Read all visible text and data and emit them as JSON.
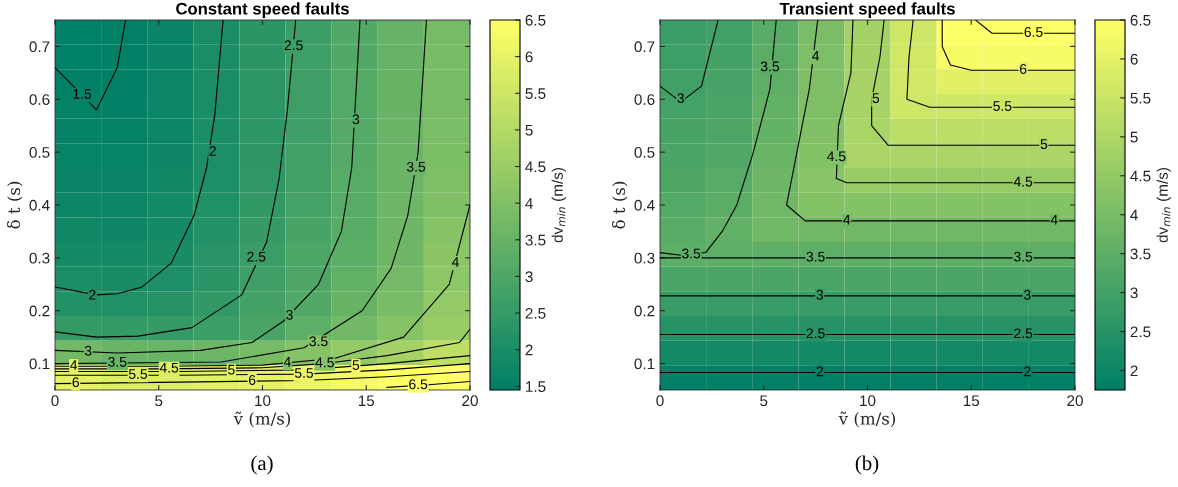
{
  "chart_data": [
    {
      "type": "heatmap",
      "title": "Constant speed faults",
      "xlabel": "ṽ (m/s)",
      "ylabel": "δ t (s)",
      "clabel": "dv$_{min}$ (m/s)",
      "annotations": [
        "(a)",
        {
          "text": "1.5",
          "x": 1.3,
          "y": 0.608
        },
        {
          "text": "2",
          "x": 7.6,
          "y": 0.5
        },
        {
          "text": "2",
          "x": 1.8,
          "y": 0.228
        },
        {
          "text": "2.5",
          "x": 11.5,
          "y": 0.7
        },
        {
          "text": "2.5",
          "x": 9.7,
          "y": 0.3
        },
        {
          "text": "3",
          "x": 14.5,
          "y": 0.56
        },
        {
          "text": "3",
          "x": 11.3,
          "y": 0.19
        },
        {
          "text": "3",
          "x": 1.6,
          "y": 0.122
        },
        {
          "text": "3.5",
          "x": 17.4,
          "y": 0.47
        },
        {
          "text": "3.5",
          "x": 12.7,
          "y": 0.14
        },
        {
          "text": "3.5",
          "x": 3,
          "y": 0.101
        },
        {
          "text": "4",
          "x": 19.3,
          "y": 0.29
        },
        {
          "text": "4",
          "x": 11.2,
          "y": 0.101
        },
        {
          "text": "4",
          "x": 0.9,
          "y": 0.095
        },
        {
          "text": "4.5",
          "x": 13,
          "y": 0.1
        },
        {
          "text": "4.5",
          "x": 5.5,
          "y": 0.09
        },
        {
          "text": "5",
          "x": 14.5,
          "y": 0.095
        },
        {
          "text": "5",
          "x": 8.5,
          "y": 0.0863
        },
        {
          "text": "5.5",
          "x": 12,
          "y": 0.08
        },
        {
          "text": "5.5",
          "x": 4,
          "y": 0.078
        },
        {
          "text": "6",
          "x": 1,
          "y": 0.0625
        },
        {
          "text": "6",
          "x": 9.5,
          "y": 0.0667
        },
        {
          "text": "6.5",
          "x": 17.5,
          "y": 0.0587
        }
      ],
      "series": [
        {
          "type": "line",
          "color": "#000000",
          "x": [
            0,
            1,
            2,
            3,
            3.4
          ],
          "values": [
            0.66,
            0.62,
            0.58,
            0.66,
            0.75
          ]
        },
        {
          "type": "line",
          "color": "#000000",
          "x": [
            0,
            2,
            3,
            4.2,
            5.6,
            6.7,
            7.3,
            7.7,
            8.1
          ],
          "values": [
            0.245,
            0.23,
            0.232,
            0.245,
            0.29,
            0.38,
            0.47,
            0.57,
            0.75
          ]
        },
        {
          "type": "line",
          "color": "#000000",
          "x": [
            0,
            2,
            4,
            6.6,
            9,
            10.2,
            10.8,
            11.2,
            11.6
          ],
          "values": [
            0.16,
            0.15,
            0.152,
            0.168,
            0.23,
            0.33,
            0.45,
            0.58,
            0.75
          ]
        },
        {
          "type": "line",
          "color": "#000000",
          "x": [
            0,
            3,
            7,
            9.5,
            11,
            12.7,
            13.8,
            14.3,
            14.7
          ],
          "values": [
            0.125,
            0.12,
            0.125,
            0.14,
            0.18,
            0.25,
            0.35,
            0.47,
            0.75
          ]
        },
        {
          "type": "line",
          "color": "#000000",
          "x": [
            0,
            3,
            8,
            12,
            14.8,
            16.2,
            17,
            17.5,
            17.9
          ],
          "values": [
            0.1,
            0.101,
            0.103,
            0.13,
            0.2,
            0.28,
            0.38,
            0.5,
            0.75
          ]
        },
        {
          "type": "line",
          "color": "#000000",
          "x": [
            0,
            5,
            10,
            13.5,
            16.8,
            19,
            20
          ],
          "values": [
            0.095,
            0.095,
            0.097,
            0.11,
            0.15,
            0.25,
            0.4
          ]
        },
        {
          "type": "line",
          "color": "#000000",
          "x": [
            0,
            5,
            10,
            13,
            16,
            19.5,
            20
          ],
          "values": [
            0.09,
            0.09,
            0.092,
            0.1,
            0.115,
            0.14,
            0.165
          ]
        },
        {
          "type": "line",
          "color": "#000000",
          "x": [
            0,
            6,
            12,
            16,
            20
          ],
          "values": [
            0.085,
            0.085,
            0.088,
            0.1,
            0.115
          ]
        },
        {
          "type": "line",
          "color": "#000000",
          "x": [
            0,
            6,
            12,
            16,
            20
          ],
          "values": [
            0.078,
            0.078,
            0.08,
            0.088,
            0.1
          ]
        },
        {
          "type": "line",
          "color": "#000000",
          "x": [
            0,
            6,
            12,
            16,
            20
          ],
          "values": [
            0.062,
            0.065,
            0.068,
            0.075,
            0.085
          ]
        },
        {
          "type": "line",
          "color": "#000000",
          "x": [
            16,
            18,
            20
          ],
          "values": [
            0.055,
            0.06,
            0.066
          ]
        }
      ],
      "xlim": [
        0,
        20
      ],
      "ylim": [
        0.05,
        0.75
      ],
      "xticks": [
        0,
        5,
        10,
        15,
        20
      ],
      "yticks": [
        0.1,
        0.2,
        0.3,
        0.4,
        0.5,
        0.6,
        0.7
      ],
      "clim": [
        1.45,
        6.5
      ],
      "cticks": [
        1.5,
        2,
        2.5,
        3,
        3.5,
        4,
        4.5,
        5,
        5.5,
        6,
        6.5
      ],
      "grid": false,
      "cells": [
        [
          1.45,
          1.47,
          1.65,
          1.97,
          2.3,
          2.65,
          3.07,
          3.47,
          3.8
        ],
        [
          1.46,
          1.48,
          1.66,
          1.98,
          2.31,
          2.67,
          3.08,
          3.48,
          3.82
        ],
        [
          1.5,
          1.5,
          1.67,
          1.99,
          2.32,
          2.68,
          3.09,
          3.5,
          3.84
        ],
        [
          1.54,
          1.52,
          1.69,
          2.0,
          2.33,
          2.69,
          3.1,
          3.51,
          3.86
        ],
        [
          1.57,
          1.55,
          1.72,
          2.01,
          2.34,
          2.7,
          3.11,
          3.53,
          3.88
        ],
        [
          1.6,
          1.6,
          1.75,
          2.03,
          2.36,
          2.72,
          3.12,
          3.55,
          3.9
        ],
        [
          1.65,
          1.65,
          1.78,
          2.06,
          2.4,
          2.76,
          3.15,
          3.57,
          3.95
        ],
        [
          1.7,
          1.7,
          1.83,
          2.1,
          2.45,
          2.82,
          3.18,
          3.6,
          4.0
        ],
        [
          1.78,
          1.76,
          1.88,
          2.15,
          2.52,
          2.88,
          3.22,
          3.6,
          4.1
        ],
        [
          1.87,
          1.84,
          1.95,
          2.22,
          2.6,
          2.95,
          3.28,
          3.65,
          4.2
        ],
        [
          1.98,
          1.95,
          2.05,
          2.3,
          2.68,
          3.0,
          3.38,
          3.75,
          4.25
        ],
        [
          2.15,
          2.1,
          2.2,
          2.42,
          2.78,
          3.08,
          3.5,
          3.87,
          4.35
        ],
        [
          2.48,
          2.48,
          2.5,
          2.65,
          2.9,
          3.3,
          3.7,
          4.1,
          4.5
        ],
        [
          3.7,
          3.55,
          3.55,
          3.6,
          3.8,
          4.1,
          4.35,
          4.7,
          5.2
        ],
        [
          6.0,
          5.8,
          5.8,
          5.9,
          6.0,
          6.1,
          6.3,
          6.5,
          6.5
        ]
      ]
    },
    {
      "type": "heatmap",
      "title": "Transient speed faults",
      "xlabel": "ṽ (m/s)",
      "ylabel": "δ t (s)",
      "clabel": "dv$_{min}$ (m/s)",
      "annotations": [
        "(b)",
        {
          "text": "3",
          "x": 1,
          "y": 0.6
        },
        {
          "text": "3.5",
          "x": 1.5,
          "y": 0.306
        },
        {
          "text": "3.5",
          "x": 5.3,
          "y": 0.66
        },
        {
          "text": "4",
          "x": 7.5,
          "y": 0.68
        },
        {
          "text": "4.5",
          "x": 8.5,
          "y": 0.49
        },
        {
          "text": "5",
          "x": 10.4,
          "y": 0.6
        },
        {
          "text": "3.5",
          "x": 7.5,
          "y": 0.3
        },
        {
          "text": "3.5",
          "x": 17.5,
          "y": 0.3
        },
        {
          "text": "4",
          "x": 9,
          "y": 0.37
        },
        {
          "text": "4",
          "x": 19,
          "y": 0.37
        },
        {
          "text": "4.5",
          "x": 17.5,
          "y": 0.442
        },
        {
          "text": "5",
          "x": 18.5,
          "y": 0.513
        },
        {
          "text": "5.5",
          "x": 16.5,
          "y": 0.585
        },
        {
          "text": "6",
          "x": 17.5,
          "y": 0.655
        },
        {
          "text": "6.5",
          "x": 18,
          "y": 0.725
        },
        {
          "text": "3",
          "x": 7.7,
          "y": 0.228
        },
        {
          "text": "3",
          "x": 17.7,
          "y": 0.228
        },
        {
          "text": "2.5",
          "x": 7.5,
          "y": 0.155
        },
        {
          "text": "2.5",
          "x": 17.5,
          "y": 0.155
        },
        {
          "text": "2",
          "x": 7.7,
          "y": 0.083
        },
        {
          "text": "2",
          "x": 17.7,
          "y": 0.083
        }
      ],
      "series": [
        {
          "type": "line",
          "color": "#000000",
          "x": [
            0,
            20
          ],
          "values": [
            0.083,
            0.083
          ]
        },
        {
          "type": "line",
          "color": "#000000",
          "x": [
            0,
            20
          ],
          "values": [
            0.155,
            0.155
          ]
        },
        {
          "type": "line",
          "color": "#000000",
          "x": [
            0,
            20
          ],
          "values": [
            0.228,
            0.228
          ]
        },
        {
          "type": "line",
          "color": "#000000",
          "x": [
            0,
            1,
            2,
            2.8
          ],
          "values": [
            0.625,
            0.595,
            0.625,
            0.75
          ]
        },
        {
          "type": "line",
          "color": "#000000",
          "x": [
            0,
            1,
            2.2,
            3,
            3.7,
            4.5,
            5.3,
            5.6
          ],
          "values": [
            0.31,
            0.305,
            0.31,
            0.35,
            0.4,
            0.5,
            0.62,
            0.75
          ]
        },
        {
          "type": "line",
          "color": "#000000",
          "x": [
            0,
            20
          ],
          "values": [
            0.3,
            0.3
          ]
        },
        {
          "type": "line",
          "color": "#000000",
          "x": [
            20,
            7,
            6.1,
            6.6,
            7.2,
            7.6
          ],
          "values": [
            0.37,
            0.37,
            0.4,
            0.5,
            0.62,
            0.75
          ]
        },
        {
          "type": "line",
          "color": "#000000",
          "x": [
            20,
            9,
            8.5,
            8.6,
            9.2,
            9.3
          ],
          "values": [
            0.442,
            0.442,
            0.45,
            0.55,
            0.65,
            0.75
          ]
        },
        {
          "type": "line",
          "color": "#000000",
          "x": [
            20,
            11,
            10.2,
            10.2,
            10.6,
            10.8
          ],
          "values": [
            0.513,
            0.513,
            0.55,
            0.6,
            0.68,
            0.75
          ]
        },
        {
          "type": "line",
          "color": "#000000",
          "x": [
            20,
            13,
            11.9,
            12,
            12.2
          ],
          "values": [
            0.585,
            0.585,
            0.6,
            0.68,
            0.75
          ]
        },
        {
          "type": "line",
          "color": "#000000",
          "x": [
            20,
            15,
            14,
            13.6,
            13.6
          ],
          "values": [
            0.655,
            0.655,
            0.665,
            0.7,
            0.75
          ]
        },
        {
          "type": "line",
          "color": "#000000",
          "x": [
            20,
            16,
            15.2
          ],
          "values": [
            0.725,
            0.725,
            0.75
          ]
        }
      ],
      "xlim": [
        0,
        20
      ],
      "ylim": [
        0.05,
        0.75
      ],
      "xticks": [
        0,
        5,
        10,
        15,
        20
      ],
      "yticks": [
        0.1,
        0.2,
        0.3,
        0.4,
        0.5,
        0.6,
        0.7
      ],
      "clim": [
        1.75,
        6.5
      ],
      "cticks": [
        2,
        2.5,
        3,
        3.5,
        4,
        4.5,
        5,
        5.5,
        6,
        6.5
      ],
      "grid": false,
      "cells": [
        [
          2.85,
          2.95,
          3.4,
          4.05,
          4.8,
          5.6,
          6.5,
          6.5,
          6.5
        ],
        [
          2.9,
          3.0,
          3.45,
          4.07,
          4.82,
          5.62,
          6.32,
          6.32,
          6.32
        ],
        [
          2.95,
          3.05,
          3.5,
          4.1,
          4.85,
          5.65,
          5.96,
          5.96,
          5.96
        ],
        [
          3.02,
          3.12,
          3.55,
          4.12,
          4.88,
          5.6,
          5.6,
          5.6,
          5.6
        ],
        [
          3.08,
          3.2,
          3.62,
          4.15,
          4.9,
          5.27,
          5.27,
          5.27,
          5.27
        ],
        [
          3.15,
          3.27,
          3.7,
          4.2,
          4.93,
          4.93,
          4.93,
          4.93,
          4.93
        ],
        [
          3.22,
          3.35,
          3.78,
          4.3,
          4.57,
          4.57,
          4.57,
          4.57,
          4.57
        ],
        [
          3.3,
          3.45,
          3.85,
          4.2,
          4.2,
          4.2,
          4.2,
          4.2,
          4.2
        ],
        [
          3.4,
          3.58,
          3.85,
          3.85,
          3.85,
          3.85,
          3.85,
          3.85,
          3.85
        ],
        [
          3.48,
          3.5,
          3.5,
          3.5,
          3.5,
          3.5,
          3.5,
          3.5,
          3.5
        ],
        [
          3.15,
          3.15,
          3.15,
          3.15,
          3.15,
          3.15,
          3.15,
          3.15,
          3.15
        ],
        [
          2.8,
          2.8,
          2.8,
          2.8,
          2.8,
          2.8,
          2.8,
          2.8,
          2.8
        ],
        [
          2.47,
          2.47,
          2.47,
          2.47,
          2.47,
          2.47,
          2.47,
          2.47,
          2.47
        ],
        [
          2.12,
          2.12,
          2.12,
          2.12,
          2.12,
          2.12,
          2.12,
          2.12,
          2.12
        ],
        [
          1.77,
          1.77,
          1.77,
          1.77,
          1.77,
          1.77,
          1.77,
          1.77,
          1.77
        ]
      ]
    }
  ]
}
